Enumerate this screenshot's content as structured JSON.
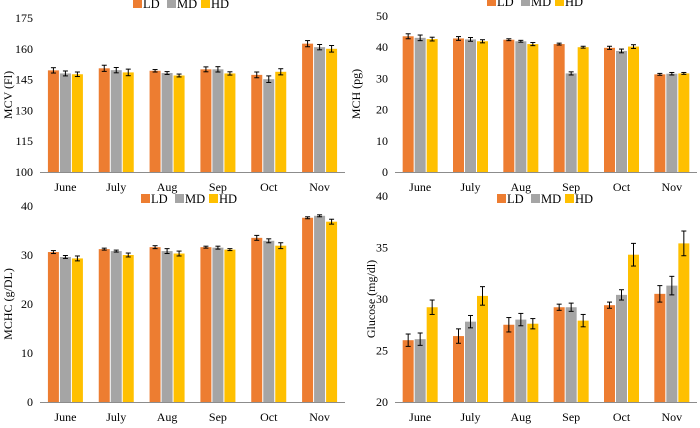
{
  "colors": {
    "LD": "#ED7D31",
    "MD": "#A5A5A5",
    "HD": "#FFC000",
    "axis": "#8C8C8C",
    "errorbar": "#000000"
  },
  "chart_data": [
    {
      "type": "bar",
      "id": "mcv",
      "title": "",
      "ylabel": "MCV (Fl)",
      "ylim": [
        100,
        175
      ],
      "yticks": [
        100,
        115,
        130,
        145,
        160,
        175
      ],
      "categories": [
        "June",
        "July",
        "Aug",
        "Sep",
        "Oct",
        "Nov"
      ],
      "legend": [
        "LD",
        "MD",
        "HD"
      ],
      "series": [
        {
          "name": "LD",
          "values": [
            149.5,
            150.5,
            149.3,
            150.0,
            147.3,
            162.5
          ],
          "errors": [
            1.3,
            1.5,
            0.6,
            1.2,
            1.4,
            1.5
          ]
        },
        {
          "name": "MD",
          "values": [
            148.0,
            149.6,
            148.2,
            150.0,
            145.2,
            160.8
          ],
          "errors": [
            1.2,
            1.3,
            0.7,
            1.3,
            1.6,
            1.3
          ]
        },
        {
          "name": "HD",
          "values": [
            147.6,
            148.5,
            147.0,
            148.0,
            148.8,
            160.0
          ],
          "errors": [
            1.1,
            1.6,
            0.7,
            0.8,
            1.5,
            1.6
          ]
        }
      ]
    },
    {
      "type": "bar",
      "id": "mch",
      "title": "",
      "ylabel": "MCH (pg)",
      "ylim": [
        0,
        50
      ],
      "yticks": [
        0,
        10,
        20,
        30,
        40,
        50
      ],
      "categories": [
        "June",
        "July",
        "Aug",
        "Sep",
        "Oct",
        "Nov"
      ],
      "legend": [
        "LD",
        "MD",
        "HD"
      ],
      "series": [
        {
          "name": "LD",
          "values": [
            43.5,
            42.8,
            42.4,
            41.0,
            39.8,
            31.3
          ],
          "errors": [
            0.8,
            0.6,
            0.3,
            0.3,
            0.5,
            0.3
          ]
        },
        {
          "name": "MD",
          "values": [
            43.0,
            42.5,
            41.9,
            31.6,
            38.8,
            31.5
          ],
          "errors": [
            0.9,
            0.6,
            0.3,
            0.5,
            0.6,
            0.4
          ]
        },
        {
          "name": "HD",
          "values": [
            42.6,
            41.9,
            41.0,
            40.0,
            40.2,
            31.6
          ],
          "errors": [
            0.6,
            0.5,
            0.5,
            0.3,
            0.6,
            0.3
          ]
        }
      ]
    },
    {
      "type": "bar",
      "id": "mchc",
      "title": "",
      "ylabel": "MCHC (g/DL)",
      "ylim": [
        0,
        40
      ],
      "yticks": [
        0,
        10,
        20,
        30,
        40
      ],
      "categories": [
        "June",
        "July",
        "Aug",
        "Sep",
        "Oct",
        "Nov"
      ],
      "legend": [
        "LD",
        "MD",
        "HD"
      ],
      "series": [
        {
          "name": "LD",
          "values": [
            30.6,
            31.2,
            31.6,
            31.6,
            33.5,
            37.6
          ],
          "errors": [
            0.3,
            0.2,
            0.3,
            0.2,
            0.5,
            0.2
          ]
        },
        {
          "name": "MD",
          "values": [
            29.6,
            30.8,
            30.8,
            31.5,
            32.9,
            38.0
          ],
          "errors": [
            0.3,
            0.2,
            0.5,
            0.3,
            0.4,
            0.2
          ]
        },
        {
          "name": "HD",
          "values": [
            29.3,
            30.0,
            30.3,
            31.1,
            31.9,
            36.8
          ],
          "errors": [
            0.5,
            0.4,
            0.5,
            0.2,
            0.6,
            0.5
          ]
        }
      ]
    },
    {
      "type": "bar",
      "id": "glucose",
      "title": "",
      "ylabel": "Glucose (mg/dl)",
      "ylim": [
        20,
        40
      ],
      "yticks": [
        20,
        25,
        30,
        35,
        40
      ],
      "categories": [
        "June",
        "July",
        "Aug",
        "Sep",
        "Oct",
        "Nov"
      ],
      "legend": [
        "LD",
        "MD",
        "HD"
      ],
      "series": [
        {
          "name": "LD",
          "values": [
            26.0,
            26.4,
            27.5,
            29.2,
            29.4,
            30.5
          ],
          "errors": [
            0.6,
            0.7,
            0.7,
            0.3,
            0.3,
            0.8
          ]
        },
        {
          "name": "MD",
          "values": [
            26.1,
            27.8,
            28.0,
            29.2,
            30.4,
            31.3
          ],
          "errors": [
            0.6,
            0.6,
            0.6,
            0.4,
            0.5,
            0.9
          ]
        },
        {
          "name": "HD",
          "values": [
            29.2,
            30.3,
            27.6,
            27.9,
            34.3,
            35.4
          ],
          "errors": [
            0.7,
            0.9,
            0.5,
            0.6,
            1.1,
            1.2
          ]
        }
      ]
    }
  ]
}
